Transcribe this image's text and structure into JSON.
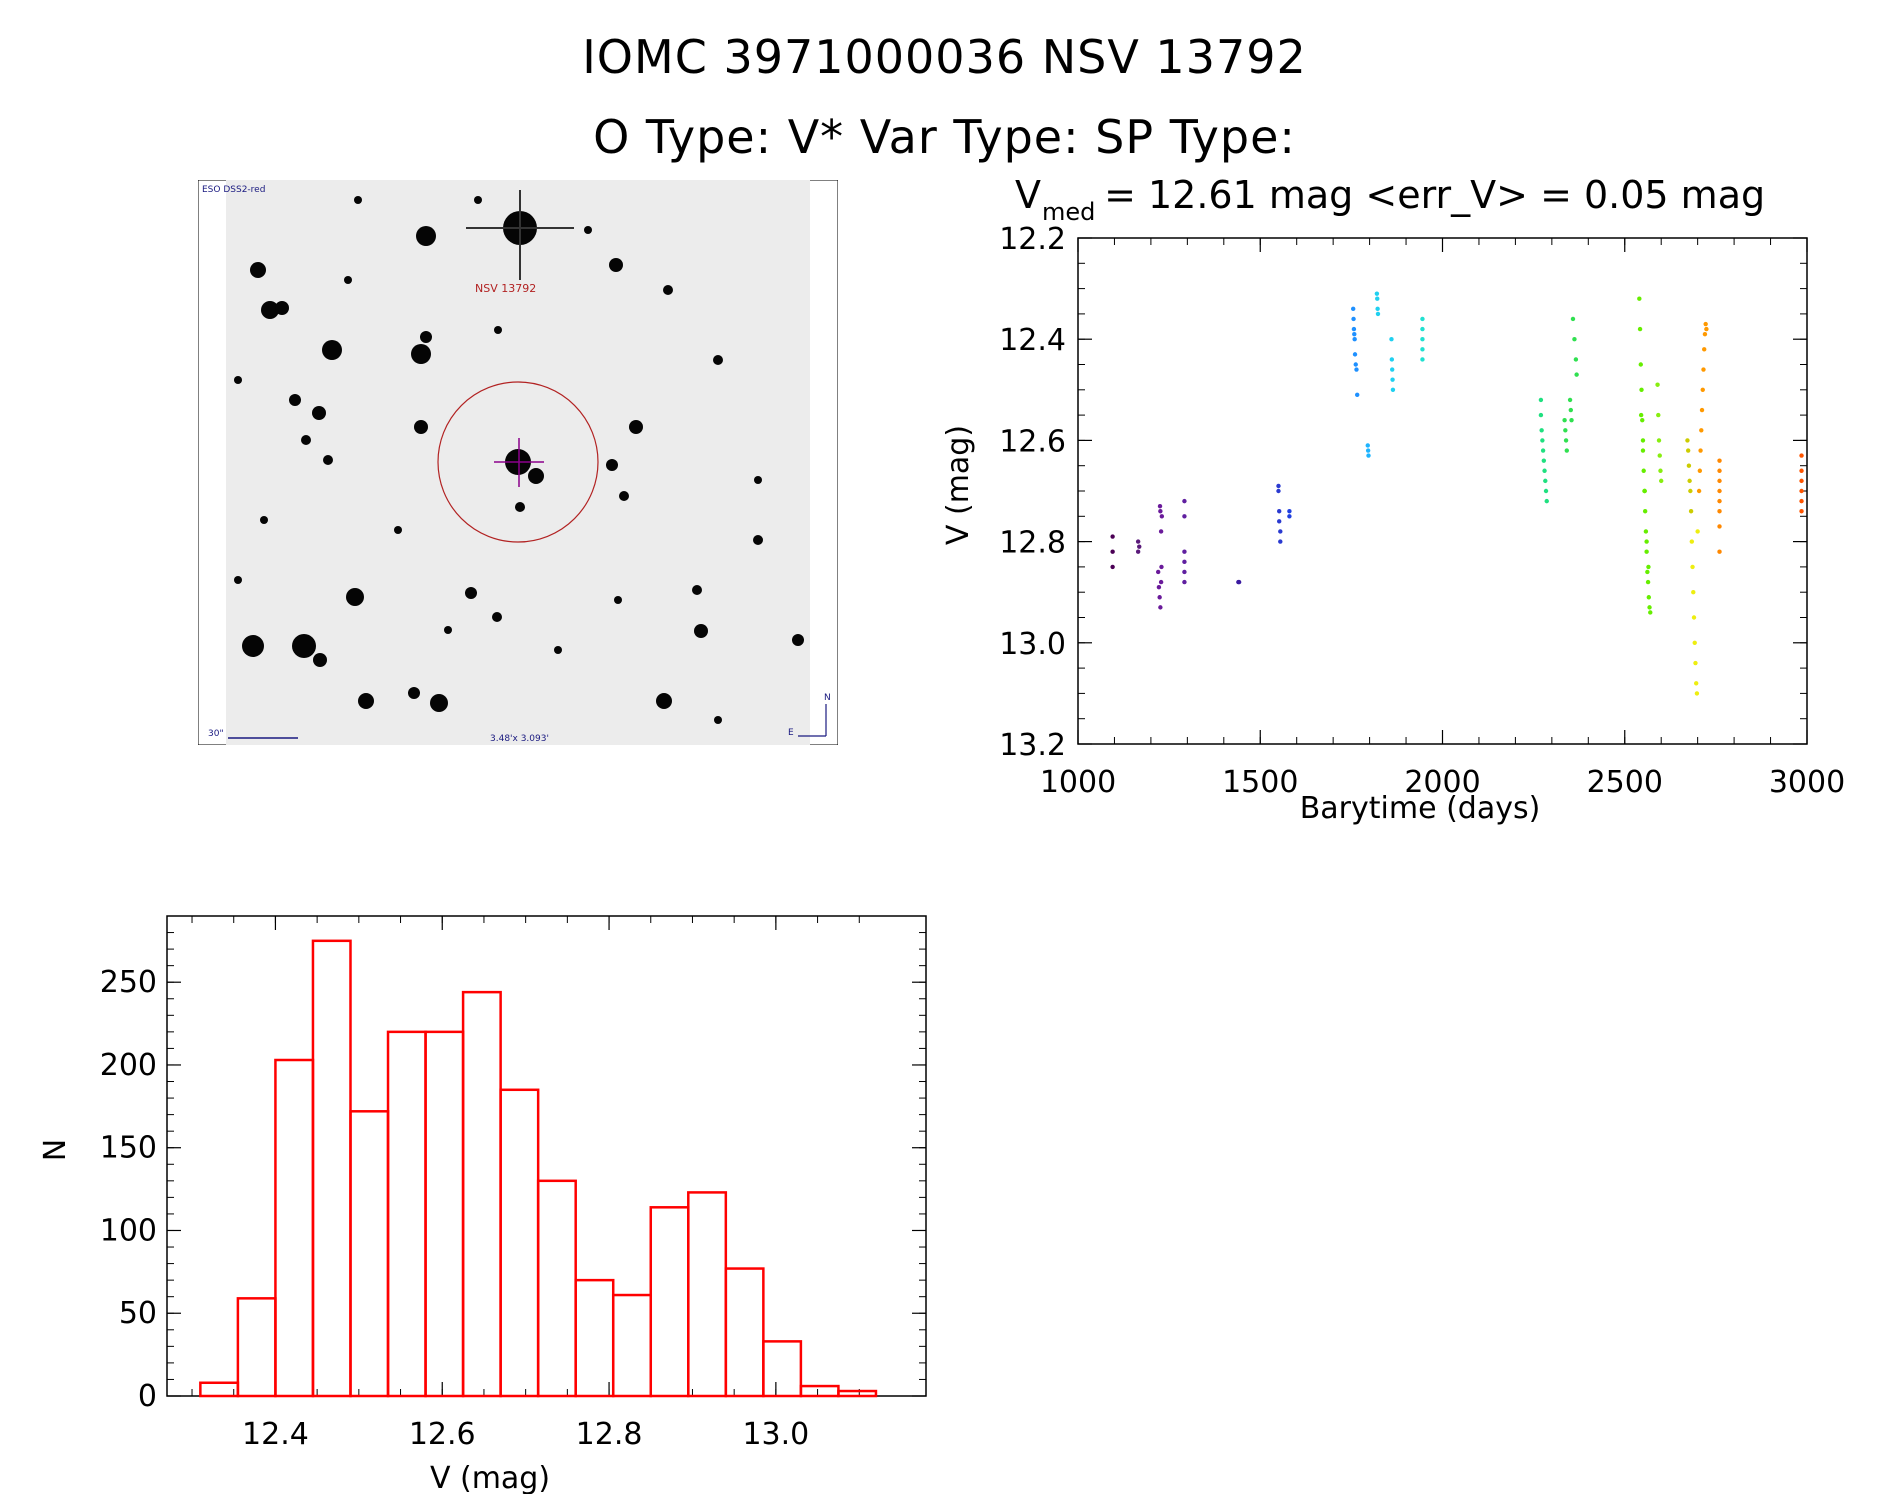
{
  "header": {
    "title": "IOMC 3971000036    NSV 13792",
    "subtitle": "O Type: V*  Var Type:   SP Type:"
  },
  "finder_chart": {
    "survey_label": "ESO DSS2-red",
    "target_label": "NSV 13792",
    "scale_label": "30\"",
    "fov_label": "3.48'x 3.093'",
    "north_label": "N",
    "east_label": "E",
    "circle_color": "#b22222",
    "crosshair_color": "#8b008b"
  },
  "chart_data": [
    {
      "type": "scatter",
      "title_parts": {
        "lhs_main": "V",
        "lhs_sub": "med",
        "rest": " = 12.61 mag <err_V> = 0.05 mag"
      },
      "xlabel": "Barytime (days)",
      "ylabel": "V (mag)",
      "xlim": [
        1000,
        3000
      ],
      "ylim": [
        13.2,
        12.2
      ],
      "y_inverted": true,
      "xticks": [
        "1000",
        "1500",
        "2000",
        "2500",
        "3000"
      ],
      "yticks": [
        "12.2",
        "12.4",
        "12.6",
        "12.8",
        "13.0",
        "13.2"
      ],
      "groups": [
        {
          "color": "#4b0055",
          "x": [
            1095,
            1095,
            1095
          ],
          "y": [
            12.79,
            12.82,
            12.85
          ]
        },
        {
          "color": "#5a1a7a",
          "x": [
            1165,
            1165,
            1168
          ],
          "y": [
            12.8,
            12.82,
            12.81
          ]
        },
        {
          "color": "#6a1a9a",
          "x": [
            1220,
            1222,
            1224,
            1226,
            1228,
            1230
          ],
          "y": [
            12.86,
            12.89,
            12.91,
            12.93,
            12.88,
            12.75
          ]
        },
        {
          "color": "#6a1a9a",
          "x": [
            1225,
            1226,
            1228,
            1229
          ],
          "y": [
            12.73,
            12.74,
            12.78,
            12.85
          ]
        },
        {
          "color": "#6020a0",
          "x": [
            1292,
            1292,
            1292,
            1292,
            1292,
            1292
          ],
          "y": [
            12.72,
            12.75,
            12.82,
            12.84,
            12.86,
            12.88
          ]
        },
        {
          "color": "#3a1aa0",
          "x": [
            1440,
            1442
          ],
          "y": [
            12.88,
            12.88
          ]
        },
        {
          "color": "#2a3ad0",
          "x": [
            1550,
            1550,
            1552,
            1552,
            1555,
            1555
          ],
          "y": [
            12.69,
            12.7,
            12.74,
            12.76,
            12.78,
            12.8
          ]
        },
        {
          "color": "#2040e0",
          "x": [
            1580,
            1580
          ],
          "y": [
            12.74,
            12.75
          ]
        },
        {
          "color": "#1e90ff",
          "x": [
            1755,
            1756,
            1757,
            1758,
            1759,
            1760,
            1762,
            1764,
            1766
          ],
          "y": [
            12.34,
            12.36,
            12.38,
            12.39,
            12.4,
            12.43,
            12.45,
            12.46,
            12.51
          ]
        },
        {
          "color": "#1eb4ff",
          "x": [
            1795,
            1796,
            1797
          ],
          "y": [
            12.61,
            12.62,
            12.63
          ]
        },
        {
          "color": "#20d0f0",
          "x": [
            1820,
            1821,
            1822,
            1823
          ],
          "y": [
            12.31,
            12.32,
            12.34,
            12.35
          ]
        },
        {
          "color": "#20d0f0",
          "x": [
            1860,
            1861,
            1862,
            1863,
            1864
          ],
          "y": [
            12.4,
            12.44,
            12.46,
            12.48,
            12.5
          ]
        },
        {
          "color": "#20e0d0",
          "x": [
            1945,
            1945,
            1945,
            1945,
            1945
          ],
          "y": [
            12.36,
            12.38,
            12.4,
            12.42,
            12.44
          ]
        },
        {
          "color": "#20e080",
          "x": [
            2270,
            2270,
            2272,
            2274,
            2276,
            2278,
            2280,
            2282,
            2284,
            2286
          ],
          "y": [
            12.52,
            12.55,
            12.58,
            12.6,
            12.62,
            12.64,
            12.66,
            12.68,
            12.7,
            12.72
          ]
        },
        {
          "color": "#30e050",
          "x": [
            2335,
            2337,
            2339,
            2341,
            2350,
            2352,
            2354,
            2358,
            2362,
            2366,
            2368
          ],
          "y": [
            12.56,
            12.58,
            12.6,
            12.62,
            12.52,
            12.54,
            12.56,
            12.36,
            12.4,
            12.44,
            12.47
          ]
        },
        {
          "color": "#66ee00",
          "x": [
            2540,
            2542,
            2544,
            2546,
            2548,
            2550,
            2552,
            2554,
            2556,
            2558,
            2560,
            2562,
            2564,
            2566,
            2568,
            2570,
            2545,
            2550,
            2555,
            2560,
            2565
          ],
          "y": [
            12.32,
            12.38,
            12.45,
            12.5,
            12.56,
            12.6,
            12.66,
            12.7,
            12.74,
            12.78,
            12.82,
            12.86,
            12.88,
            12.91,
            12.93,
            12.94,
            12.55,
            12.62,
            12.7,
            12.8,
            12.85
          ]
        },
        {
          "color": "#88ee10",
          "x": [
            2590,
            2592,
            2594,
            2596,
            2598,
            2600
          ],
          "y": [
            12.49,
            12.55,
            12.6,
            12.63,
            12.66,
            12.68
          ]
        },
        {
          "color": "#cccc00",
          "x": [
            2672,
            2674,
            2676,
            2678,
            2680,
            2682
          ],
          "y": [
            12.6,
            12.62,
            12.65,
            12.68,
            12.7,
            12.74
          ]
        },
        {
          "color": "#eeee10",
          "x": [
            2684,
            2686,
            2688,
            2690,
            2692,
            2694,
            2696,
            2698,
            2700
          ],
          "y": [
            12.8,
            12.85,
            12.9,
            12.95,
            13.0,
            13.04,
            13.08,
            13.1,
            12.78
          ]
        },
        {
          "color": "#ff9900",
          "x": [
            2704,
            2706,
            2708,
            2710,
            2712,
            2714,
            2716,
            2718,
            2720,
            2722,
            2724
          ],
          "y": [
            12.7,
            12.66,
            12.62,
            12.58,
            12.54,
            12.5,
            12.46,
            12.42,
            12.39,
            12.37,
            12.38
          ]
        },
        {
          "color": "#ff8800",
          "x": [
            2760,
            2760,
            2760,
            2760,
            2760,
            2760,
            2760,
            2760
          ],
          "y": [
            12.64,
            12.66,
            12.68,
            12.7,
            12.72,
            12.74,
            12.77,
            12.82
          ]
        },
        {
          "color": "#ff5500",
          "x": [
            2985,
            2985,
            2985,
            2985,
            2985,
            2985
          ],
          "y": [
            12.63,
            12.66,
            12.68,
            12.7,
            12.72,
            12.74
          ]
        }
      ]
    },
    {
      "type": "bar",
      "style": "histogram-outline",
      "xlabel": "V (mag)",
      "ylabel": "N",
      "xlim": [
        12.27,
        13.18
      ],
      "ylim": [
        0,
        290
      ],
      "xticks": [
        "12.4",
        "12.6",
        "12.8",
        "13.0"
      ],
      "yticks": [
        "0",
        "50",
        "100",
        "150",
        "200",
        "250"
      ],
      "bin_edges": [
        12.31,
        12.355,
        12.4,
        12.445,
        12.49,
        12.535,
        12.58,
        12.625,
        12.67,
        12.715,
        12.76,
        12.805,
        12.85,
        12.895,
        12.94,
        12.985,
        13.03,
        13.075,
        13.12
      ],
      "values": [
        8,
        59,
        203,
        275,
        172,
        220,
        220,
        244,
        185,
        130,
        70,
        61,
        114,
        123,
        77,
        33,
        6,
        3
      ],
      "bar_color": "#ff0000"
    }
  ]
}
